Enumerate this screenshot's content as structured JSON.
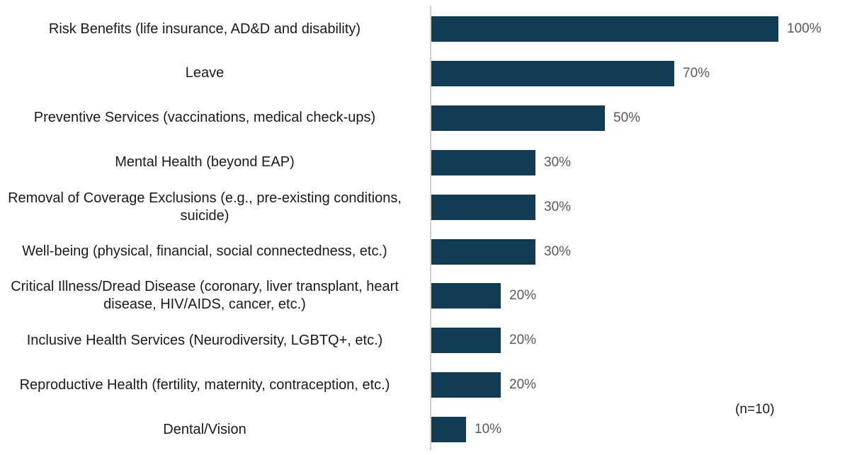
{
  "chart_data": {
    "type": "bar",
    "orientation": "horizontal",
    "categories": [
      "Risk Benefits (life insurance, AD&D and disability)",
      "Leave",
      "Preventive Services (vaccinations, medical check-ups)",
      "Mental Health (beyond EAP)",
      "Removal of Coverage Exclusions (e.g., pre-existing conditions, suicide)",
      "Well-being (physical, financial, social connectedness, etc.)",
      "Critical Illness/Dread Disease (coronary, liver transplant, heart disease, HIV/AIDS, cancer, etc.)",
      "Inclusive Health Services (Neurodiversity, LGBTQ+, etc.)",
      "Reproductive Health (fertility, maternity, contraception, etc.)",
      "Dental/Vision"
    ],
    "values": [
      100,
      70,
      50,
      30,
      30,
      30,
      20,
      20,
      20,
      10
    ],
    "value_labels": [
      "100%",
      "70%",
      "50%",
      "30%",
      "30%",
      "30%",
      "20%",
      "20%",
      "20%",
      "10%"
    ],
    "xlim": [
      0,
      100
    ],
    "grid": false,
    "bar_color": "#123b54",
    "note": "(n=10)"
  }
}
